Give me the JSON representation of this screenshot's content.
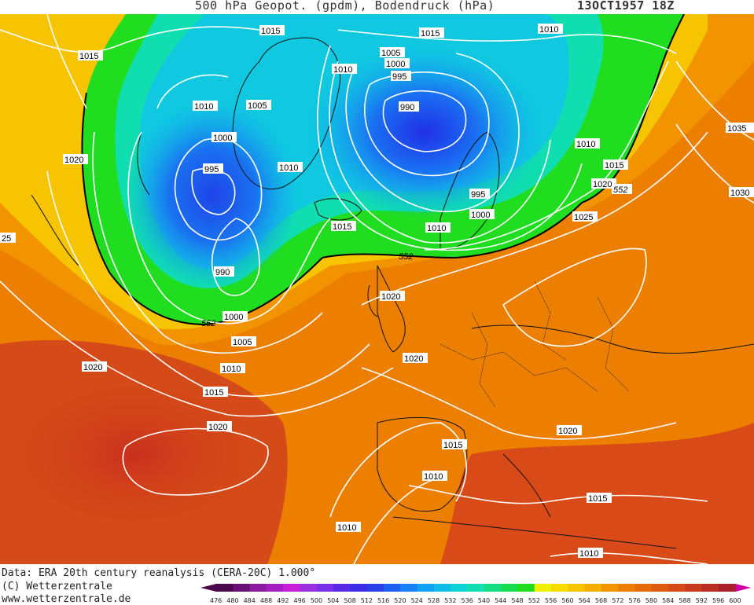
{
  "header": {
    "title": "500 hPa Geopot. (gpdm), Bodendruck (hPa)",
    "datetime": "13OCT1957 18Z"
  },
  "footer": {
    "data_source": "Data: ERA 20th century reanalysis (CERA-20C) 1.000°",
    "copyright": "(C) Wetterzentrale",
    "url": "www.wetterzentrale.de"
  },
  "colorbar": {
    "labels": [
      "476",
      "480",
      "484",
      "488",
      "492",
      "496",
      "500",
      "504",
      "508",
      "512",
      "516",
      "520",
      "524",
      "528",
      "532",
      "536",
      "540",
      "544",
      "548",
      "552",
      "556",
      "560",
      "564",
      "568",
      "572",
      "576",
      "580",
      "584",
      "588",
      "592",
      "596",
      "600"
    ],
    "colors": [
      "#4b0a4e",
      "#6a0f78",
      "#8c1aa0",
      "#a51fc0",
      "#c820d8",
      "#9b30e0",
      "#7a30e8",
      "#5a2ae6",
      "#3c2ce6",
      "#2a40e8",
      "#1e60f0",
      "#1a82f4",
      "#12a2f2",
      "#10bce8",
      "#10d2d8",
      "#10ddb0",
      "#12dd80",
      "#16dd50",
      "#20dd20",
      "#f0f000",
      "#f6dc00",
      "#f8c400",
      "#f6ac00",
      "#f29400",
      "#ec7e00",
      "#e66a08",
      "#de5a10",
      "#d44a18",
      "#c83c1c",
      "#b82e22",
      "#a82028",
      "#d000a0"
    ]
  },
  "map": {
    "contour_552_label": "552",
    "isobar_labels": [
      {
        "text": "1015",
        "id": "a"
      },
      {
        "text": "1015",
        "id": "b"
      },
      {
        "text": "1010",
        "id": "c"
      },
      {
        "text": "1015",
        "id": "d"
      },
      {
        "text": "1005",
        "id": "e"
      },
      {
        "text": "1000",
        "id": "f"
      },
      {
        "text": "1010",
        "id": "g"
      },
      {
        "text": "995",
        "id": "h"
      },
      {
        "text": "990",
        "id": "i"
      },
      {
        "text": "1010",
        "id": "j"
      },
      {
        "text": "1005",
        "id": "k"
      },
      {
        "text": "1000",
        "id": "l"
      },
      {
        "text": "1035",
        "id": "m"
      },
      {
        "text": "1020",
        "id": "n"
      },
      {
        "text": "995",
        "id": "o"
      },
      {
        "text": "1010",
        "id": "p"
      },
      {
        "text": "1010",
        "id": "q"
      },
      {
        "text": "1015",
        "id": "r"
      },
      {
        "text": "1020",
        "id": "s"
      },
      {
        "text": "552",
        "id": "t"
      },
      {
        "text": "995",
        "id": "u"
      },
      {
        "text": "1030",
        "id": "v"
      },
      {
        "text": "1000",
        "id": "w"
      },
      {
        "text": "1025",
        "id": "x"
      },
      {
        "text": "25",
        "id": "y"
      },
      {
        "text": "1015",
        "id": "z"
      },
      {
        "text": "1010",
        "id": "aa"
      },
      {
        "text": "552",
        "id": "ab"
      },
      {
        "text": "990",
        "id": "ac"
      },
      {
        "text": "1020",
        "id": "ad"
      },
      {
        "text": "1000",
        "id": "ae"
      },
      {
        "text": "552",
        "id": "af"
      },
      {
        "text": "1005",
        "id": "ag"
      },
      {
        "text": "1020",
        "id": "ah"
      },
      {
        "text": "1020",
        "id": "ai"
      },
      {
        "text": "1010",
        "id": "aj"
      },
      {
        "text": "1015",
        "id": "ak"
      },
      {
        "text": "1020",
        "id": "al"
      },
      {
        "text": "1020",
        "id": "am"
      },
      {
        "text": "1015",
        "id": "an"
      },
      {
        "text": "1010",
        "id": "ao"
      },
      {
        "text": "1015",
        "id": "ap"
      },
      {
        "text": "1010",
        "id": "aq"
      },
      {
        "text": "1010",
        "id": "ar"
      }
    ]
  }
}
